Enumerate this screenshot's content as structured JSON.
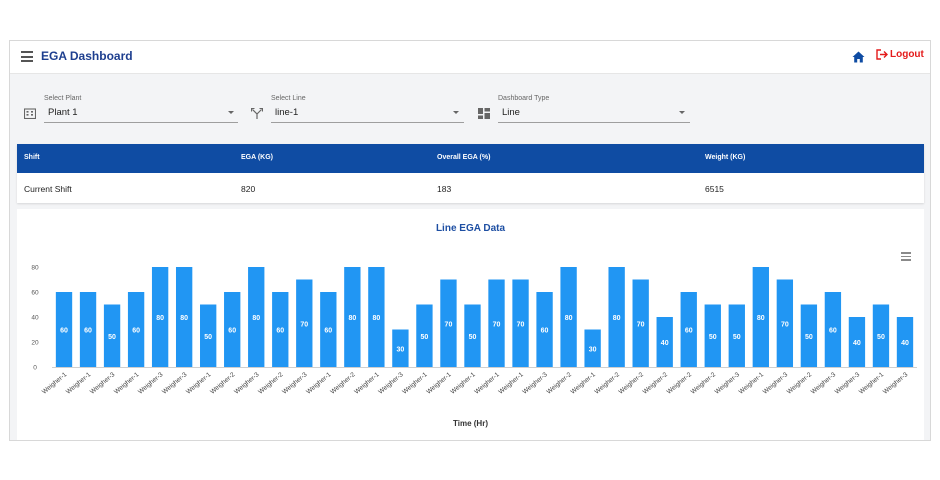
{
  "header": {
    "title": "EGA Dashboard",
    "logout_label": "Logout"
  },
  "filters": {
    "plant": {
      "label": "Select Plant",
      "value": "Plant 1",
      "icon": "building-icon"
    },
    "line": {
      "label": "Select Line",
      "value": "line-1",
      "icon": "fork-icon"
    },
    "dashboard_type": {
      "label": "Dashboard Type",
      "value": "Line",
      "icon": "dashboard-icon"
    }
  },
  "table": {
    "headers": [
      "Shift",
      "EGA (KG)",
      "Overall EGA (%)",
      "Weight (KG)"
    ],
    "row": [
      "Current Shift",
      "820",
      "183",
      "6515"
    ]
  },
  "colors": {
    "primary": "#0f4ca3",
    "bar": "#2196f3",
    "logout": "#e41b1b",
    "title": "#1e3f8f"
  },
  "chart_data": {
    "type": "bar",
    "title": "Line EGA Data",
    "xlabel": "Time (Hr)",
    "ylabel": "",
    "ylim": [
      0,
      80
    ],
    "yticks": [
      0,
      20,
      40,
      60,
      80
    ],
    "grid": false,
    "data_labels": true,
    "categories": [
      "Weigher-1",
      "Weigher-1",
      "Weigher-3",
      "Weigher-1",
      "Weigher-3",
      "Weigher-3",
      "Weigher-1",
      "Weigher-2",
      "Weigher-3",
      "Weigher-2",
      "Weigher-3",
      "Weigher-1",
      "Weigher-2",
      "Weigher-1",
      "Weigher-3",
      "Weigher-1",
      "Weigher-1",
      "Weigher-1",
      "Weigher-1",
      "Weigher-1",
      "Weigher-3",
      "Weigher-2",
      "Weigher-1",
      "Weigher-2",
      "Weigher-2",
      "Weigher-2",
      "Weigher-2",
      "Weigher-2",
      "Weigher-3",
      "Weigher-1",
      "Weigher-3",
      "Weigher-2",
      "Weigher-3",
      "Weigher-3",
      "Weigher-1",
      "Weigher-3"
    ],
    "values": [
      60,
      60,
      50,
      60,
      80,
      80,
      50,
      60,
      80,
      60,
      70,
      60,
      80,
      80,
      30,
      50,
      70,
      50,
      70,
      70,
      60,
      80,
      30,
      80,
      70,
      40,
      60,
      50,
      50,
      80,
      70,
      50,
      60,
      40,
      50,
      40
    ]
  }
}
